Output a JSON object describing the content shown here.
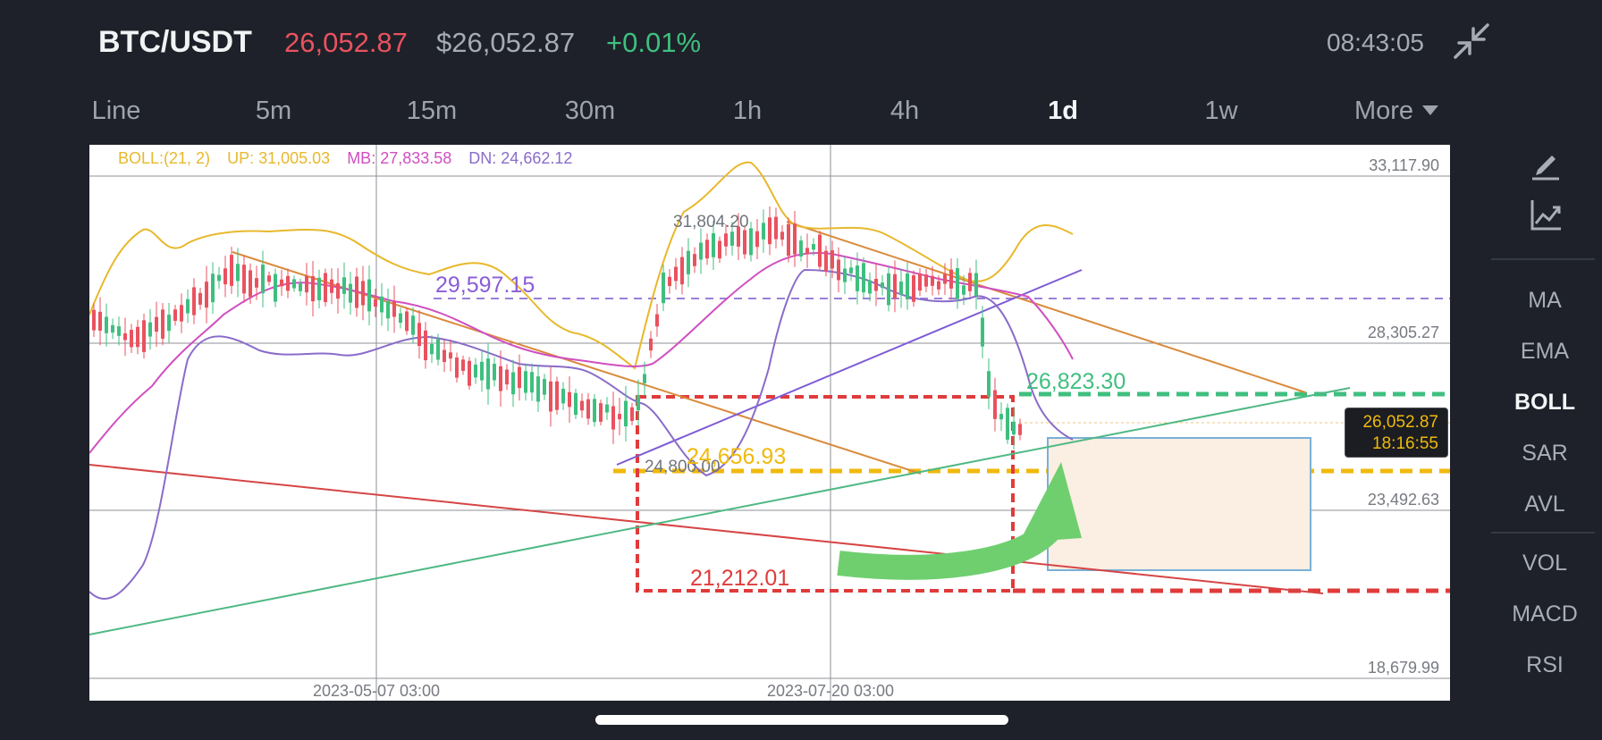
{
  "header": {
    "pair": "BTC/USDT",
    "last_price": "26,052.87",
    "fiat_price": "$26,052.87",
    "change_pct": "+0.01%",
    "clock": "08:43:05",
    "collapse_icon": "collapse-arrows-icon"
  },
  "intervals": {
    "items": [
      {
        "label": "Line"
      },
      {
        "label": "5m"
      },
      {
        "label": "15m"
      },
      {
        "label": "30m"
      },
      {
        "label": "1h"
      },
      {
        "label": "4h"
      },
      {
        "label": "1d"
      },
      {
        "label": "1w"
      },
      {
        "label": "More"
      }
    ],
    "active": "1d"
  },
  "indicator_legend": {
    "boll": "BOLL:(21, 2)",
    "up": "UP: 31,005.03",
    "mb": "MB: 27,833.58",
    "dn": "DN: 24,662.12",
    "colors": {
      "boll": "#e8b82c",
      "up": "#e8b82c",
      "mb": "#d04fc0",
      "dn": "#8a6cc9"
    }
  },
  "price_axis": {
    "labels": [
      "33,117.90",
      "28,305.27",
      "23,492.63",
      "18,679.99"
    ]
  },
  "time_axis": {
    "labels": [
      "2023-05-07 03:00",
      "2023-07-20 03:00"
    ]
  },
  "annotations": {
    "high_label": "31,804.20",
    "low_label": "24,800.00",
    "purple_level": "29,597.15",
    "green_level": "26,823.30",
    "yellow_level": "24,656.93",
    "red_level": "21,212.01"
  },
  "current_price_tag": {
    "price": "26,052.87",
    "countdown": "18:16:55"
  },
  "right_panel": {
    "tools": [
      "pencil-icon",
      "chart-indicator-icon"
    ],
    "overlays": [
      "MA",
      "EMA",
      "BOLL",
      "SAR",
      "AVL"
    ],
    "overlay_active": "BOLL",
    "oscillators": [
      "VOL",
      "MACD",
      "RSI"
    ]
  },
  "colors": {
    "background": "#1e2129",
    "up": "#3fbf7f",
    "down": "#e9525f",
    "accent_yellow": "#f0b90b"
  }
}
